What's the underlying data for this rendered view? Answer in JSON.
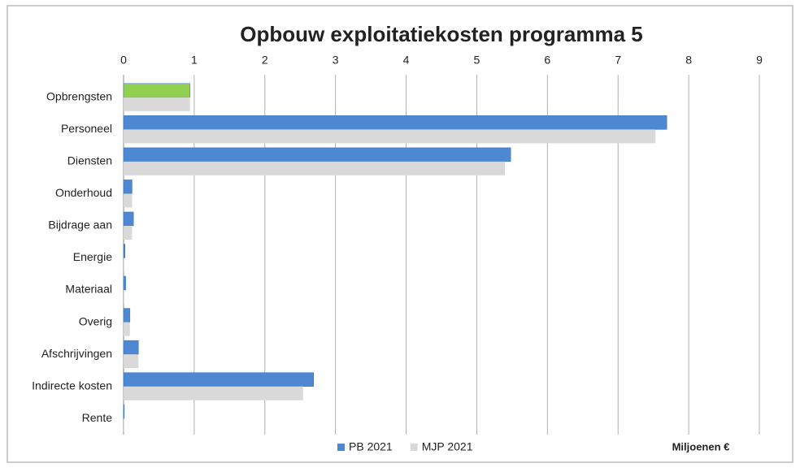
{
  "chart_data": {
    "type": "barh",
    "title": "Opbouw exploitatiekosten programma 5",
    "xlabel": "Miljoenen €",
    "categories": [
      "Opbrengsten",
      "Personeel",
      "Diensten",
      "Onderhoud",
      "Bijdrage aan",
      "Energie",
      "Materiaal",
      "Overig",
      "Afschrijvingen",
      "Indirecte kosten",
      "Rente"
    ],
    "series": [
      {
        "name": "PB 2021",
        "color": "#4f88d2",
        "colors": [
          "#92d050",
          "#4f88d2",
          "#4f88d2",
          "#4f88d2",
          "#4f88d2",
          "#4f88d2",
          "#4f88d2",
          "#4f88d2",
          "#4f88d2",
          "#4f88d2",
          "#4f88d2"
        ],
        "values": [
          0.94,
          7.69,
          5.48,
          0.12,
          0.14,
          0.02,
          0.03,
          0.09,
          0.21,
          2.69,
          0.01
        ]
      },
      {
        "name": "MJP 2021",
        "color": "#d9d9d9",
        "values": [
          0.94,
          7.53,
          5.4,
          0.12,
          0.12,
          0.01,
          0.01,
          0.09,
          0.21,
          2.54,
          0.01
        ]
      }
    ],
    "xlim": [
      0,
      9
    ],
    "xticks": [
      0,
      1,
      2,
      3,
      4,
      5,
      6,
      7,
      8,
      9
    ],
    "grid": true,
    "legend": "bottom"
  }
}
